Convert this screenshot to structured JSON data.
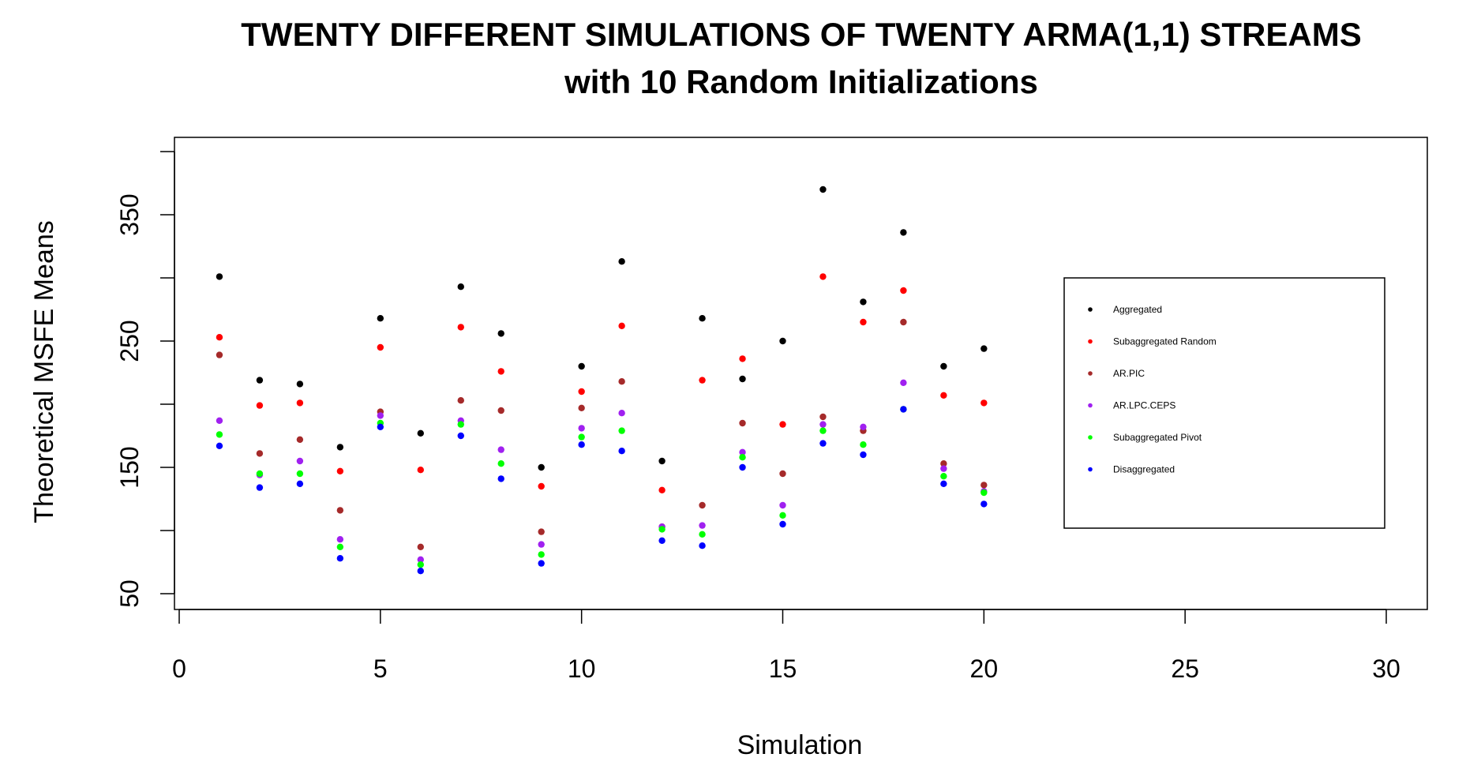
{
  "chart_data": {
    "type": "scatter",
    "title": "TWENTY DIFFERENT SIMULATIONS OF TWENTY ARMA(1,1) STREAMS",
    "subtitle": "with 10 Random Initializations",
    "xlabel": "Simulation",
    "ylabel": "Theoretical  MSFE Means",
    "xlim": [
      0,
      30
    ],
    "ylim": [
      50,
      400
    ],
    "x_ticks": [
      0,
      5,
      10,
      15,
      20,
      25,
      30
    ],
    "y_ticks": [
      50,
      150,
      250,
      350
    ],
    "x_tick_labels": [
      "0",
      "5",
      "10",
      "15",
      "20",
      "25",
      "30"
    ],
    "y_tick_labels": [
      "50",
      "150",
      "250",
      "350"
    ],
    "legend_position": "right",
    "x": [
      1,
      2,
      3,
      4,
      5,
      6,
      7,
      8,
      9,
      10,
      11,
      12,
      13,
      14,
      15,
      16,
      17,
      18,
      19,
      20
    ],
    "series": [
      {
        "name": "Aggregated",
        "color": "#000000",
        "values": [
          301,
          219,
          216,
          166,
          268,
          177,
          293,
          256,
          150,
          230,
          313,
          155,
          268,
          220,
          250,
          370,
          281,
          336,
          230,
          244
        ]
      },
      {
        "name": "Subaggregated Random",
        "color": "#ff0000",
        "values": [
          253,
          199,
          201,
          147,
          245,
          148,
          261,
          226,
          135,
          210,
          262,
          132,
          219,
          236,
          184,
          301,
          265,
          290,
          207,
          201
        ]
      },
      {
        "name": "AR.PIC",
        "color": "#a52a2a",
        "values": [
          239,
          161,
          172,
          116,
          194,
          87,
          203,
          195,
          99,
          197,
          218,
          103,
          120,
          185,
          145,
          190,
          179,
          265,
          153,
          136
        ]
      },
      {
        "name": "AR.LPC.CEPS",
        "color": "#a020f0",
        "values": [
          187,
          144,
          155,
          93,
          191,
          77,
          187,
          164,
          89,
          181,
          193,
          103,
          104,
          162,
          120,
          184,
          182,
          217,
          149,
          131
        ]
      },
      {
        "name": "Subaggregated Pivot",
        "color": "#00ff00",
        "values": [
          176,
          145,
          145,
          87,
          185,
          73,
          184,
          153,
          81,
          174,
          179,
          101,
          97,
          158,
          112,
          179,
          168,
          196,
          143,
          130
        ]
      },
      {
        "name": "Disaggregated",
        "color": "#0000ff",
        "values": [
          167,
          134,
          137,
          78,
          182,
          68,
          175,
          141,
          74,
          168,
          163,
          92,
          88,
          150,
          105,
          169,
          160,
          196,
          137,
          121
        ]
      }
    ]
  }
}
